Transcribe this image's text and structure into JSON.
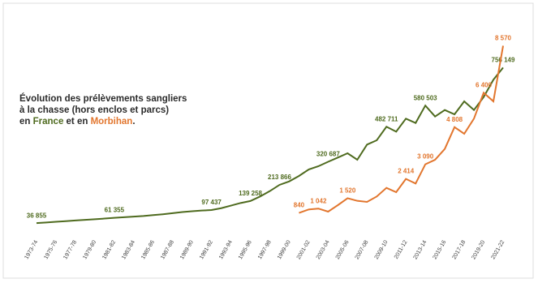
{
  "chart_data": {
    "type": "line",
    "title_lines": [
      "Évolution des prélèvements sangliers",
      "à la chasse (hors enclos et parcs)"
    ],
    "title_last_line": [
      "en ",
      "France",
      " et en ",
      "Morbihan",
      "."
    ],
    "categories": [
      "1973-74",
      null,
      "1975-76",
      null,
      "1977-78",
      null,
      "1979-80",
      null,
      "1981-82",
      null,
      "1983-84",
      null,
      "1985-86",
      null,
      "1987-88",
      null,
      "1989-90",
      null,
      "1991-92",
      null,
      "1993-94",
      null,
      "1995-96",
      null,
      "1997-98",
      null,
      "1999-00",
      null,
      "2001-02",
      null,
      "2003-04",
      null,
      "2005-06",
      null,
      "2007-08",
      null,
      "2009-10",
      null,
      "2011-12",
      null,
      "2013-14",
      null,
      "2015-16",
      null,
      "2017-18",
      null,
      "2019-20",
      null,
      "2021-22"
    ],
    "ylim": [
      0,
      900000
    ],
    "y2lim": [
      0,
      9000
    ],
    "series": [
      {
        "name": "France",
        "color": "#4f6b1f",
        "values": [
          36855,
          40000,
          43000,
          46000,
          49000,
          52000,
          55000,
          58000,
          61355,
          64000,
          67000,
          70000,
          74000,
          78000,
          83000,
          88000,
          92000,
          95000,
          97437,
          106000,
          118000,
          130000,
          139258,
          160000,
          185000,
          213866,
          230000,
          255000,
          285000,
          300000,
          320687,
          340000,
          360000,
          330000,
          400000,
          420000,
          482711,
          460000,
          520000,
          500000,
          580503,
          530000,
          560000,
          540000,
          600000,
          560000,
          620000,
          700000,
          756149
        ],
        "value_labels": [
          "36 855",
          null,
          null,
          null,
          null,
          null,
          null,
          null,
          "61 355",
          null,
          null,
          null,
          null,
          null,
          null,
          null,
          null,
          null,
          "97 437",
          null,
          null,
          null,
          "139 258",
          null,
          null,
          "213 866",
          null,
          null,
          null,
          null,
          "320 687",
          null,
          null,
          null,
          null,
          null,
          "482 711",
          null,
          null,
          null,
          "580 503",
          null,
          null,
          null,
          null,
          null,
          null,
          null,
          "756 149"
        ]
      },
      {
        "name": "Morbihan",
        "color": "#e2762e",
        "axis": "y2",
        "values": [
          null,
          null,
          null,
          null,
          null,
          null,
          null,
          null,
          null,
          null,
          null,
          null,
          null,
          null,
          null,
          null,
          null,
          null,
          null,
          null,
          null,
          null,
          null,
          null,
          null,
          null,
          null,
          840,
          1000,
          1042,
          900,
          1200,
          1520,
          1400,
          1350,
          1600,
          2000,
          1800,
          2414,
          2200,
          3090,
          3300,
          3800,
          4808,
          4500,
          5200,
          6400,
          6000,
          8570
        ],
        "value_labels": [
          null,
          null,
          null,
          null,
          null,
          null,
          null,
          null,
          null,
          null,
          null,
          null,
          null,
          null,
          null,
          null,
          null,
          null,
          null,
          null,
          null,
          null,
          null,
          null,
          null,
          null,
          null,
          "840",
          null,
          "1 042",
          null,
          null,
          "1 520",
          null,
          null,
          null,
          null,
          null,
          "2 414",
          null,
          "3 090",
          null,
          null,
          "4 808",
          null,
          null,
          "6 400",
          null,
          "8 570"
        ]
      }
    ]
  }
}
